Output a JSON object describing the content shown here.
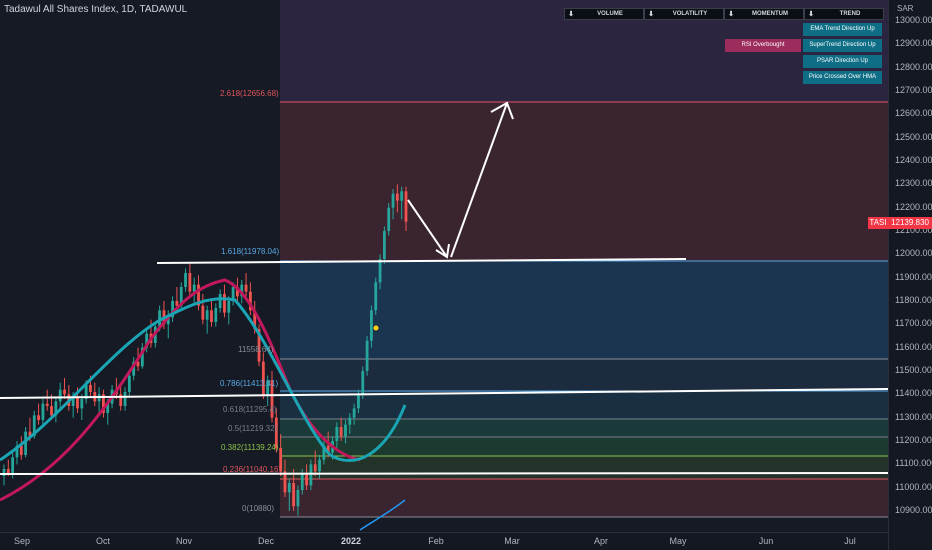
{
  "header": {
    "title": "Tadawul All Shares Index, 1D, TADAWUL"
  },
  "symbol": {
    "ticker": "TASI",
    "last_price": "12139.830",
    "currency": "SAR"
  },
  "indicator_panel": {
    "columns": [
      {
        "label": "VOLUME",
        "icon": "down-arrow-icon"
      },
      {
        "label": "VOLATILITY",
        "icon": "down-arrow-icon"
      },
      {
        "label": "MOMENTUM",
        "icon": "down-arrow-icon"
      },
      {
        "label": "TREND",
        "icon": "down-arrow-icon"
      }
    ],
    "momentum_signals": [
      "RSI Overbought"
    ],
    "trend_signals": [
      "EMA Trend Direction Up",
      "SuperTrend Direction Up",
      "PSAR Direction Up",
      "Price Crossed Over HMA"
    ],
    "colors": {
      "trend": "#0e6e86",
      "momentum": "#9c2c5c"
    }
  },
  "fib_levels": [
    {
      "text": "2.618(12656.68)",
      "color": "#e0565f"
    },
    {
      "text": "1.618(11978.04)",
      "color": "#5aa9e6"
    },
    {
      "text": "11558.64)",
      "color": "#8a8f9a"
    },
    {
      "text": "0.786(11413.41)",
      "color": "#5aa9e6"
    },
    {
      "text": "0.618(11295.4)",
      "color": "#7a7f8a"
    },
    {
      "text": "0.5(11219.32)",
      "color": "#7a7f8a"
    },
    {
      "text": "0.382(11139.24)",
      "color": "#8bc34a"
    },
    {
      "text": "0.236(11040.16)",
      "color": "#e0565f"
    },
    {
      "text": "0(10880)",
      "color": "#8a8f9a"
    }
  ],
  "price_axis": {
    "labels": [
      "13000.000",
      "12900.000",
      "12800.000",
      "12700.000",
      "12600.000",
      "12500.000",
      "12400.000",
      "12300.000",
      "12200.000",
      "12100.000",
      "12000.000",
      "11900.000",
      "11800.000",
      "11700.000",
      "11600.000",
      "11500.000",
      "11400.000",
      "11300.000",
      "11200.000",
      "11100.000",
      "11000.000",
      "10900.000"
    ],
    "values": [
      13000,
      12900,
      12800,
      12700,
      12600,
      12500,
      12400,
      12300,
      12200,
      12100,
      12000,
      11900,
      11800,
      11700,
      11600,
      11500,
      11400,
      11300,
      11200,
      11100,
      11000,
      10900
    ]
  },
  "time_axis": {
    "labels": [
      "Sep",
      "Oct",
      "Nov",
      "Dec",
      "2022",
      "Feb",
      "Mar",
      "Apr",
      "May",
      "Jun",
      "Jul"
    ]
  },
  "colors": {
    "up_candle": "#26a69a",
    "down_candle": "#ef5350",
    "ema": "#c2185b",
    "hma": "#1aa5b5",
    "drawing": "#ffffff"
  },
  "candles": [
    [
      11050,
      11100,
      11010,
      11080
    ],
    [
      11080,
      11120,
      11050,
      11060
    ],
    [
      11060,
      11150,
      11040,
      11130
    ],
    [
      11130,
      11200,
      11100,
      11180
    ],
    [
      11180,
      11220,
      11120,
      11140
    ],
    [
      11140,
      11260,
      11130,
      11240
    ],
    [
      11240,
      11300,
      11200,
      11220
    ],
    [
      11220,
      11330,
      11210,
      11310
    ],
    [
      11310,
      11360,
      11270,
      11290
    ],
    [
      11290,
      11380,
      11260,
      11360
    ],
    [
      11360,
      11420,
      11330,
      11350
    ],
    [
      11350,
      11400,
      11290,
      11310
    ],
    [
      11310,
      11390,
      11280,
      11370
    ],
    [
      11370,
      11450,
      11340,
      11420
    ],
    [
      11420,
      11470,
      11380,
      11400
    ],
    [
      11400,
      11440,
      11330,
      11350
    ],
    [
      11350,
      11410,
      11300,
      11390
    ],
    [
      11390,
      11430,
      11320,
      11340
    ],
    [
      11340,
      11400,
      11290,
      11380
    ],
    [
      11380,
      11460,
      11360,
      11440
    ],
    [
      11440,
      11480,
      11390,
      11410
    ],
    [
      11410,
      11450,
      11350,
      11370
    ],
    [
      11370,
      11430,
      11320,
      11400
    ],
    [
      11400,
      11420,
      11300,
      11320
    ],
    [
      11320,
      11380,
      11270,
      11360
    ],
    [
      11360,
      11440,
      11340,
      11420
    ],
    [
      11420,
      11470,
      11380,
      11400
    ],
    [
      11400,
      11440,
      11330,
      11350
    ],
    [
      11350,
      11430,
      11330,
      11410
    ],
    [
      11410,
      11500,
      11390,
      11480
    ],
    [
      11480,
      11560,
      11460,
      11540
    ],
    [
      11540,
      11600,
      11500,
      11520
    ],
    [
      11520,
      11620,
      11510,
      11600
    ],
    [
      11600,
      11680,
      11580,
      11660
    ],
    [
      11660,
      11720,
      11600,
      11620
    ],
    [
      11620,
      11700,
      11600,
      11690
    ],
    [
      11690,
      11780,
      11670,
      11760
    ],
    [
      11760,
      11800,
      11680,
      11700
    ],
    [
      11700,
      11760,
      11640,
      11730
    ],
    [
      11730,
      11820,
      11710,
      11800
    ],
    [
      11800,
      11860,
      11760,
      11780
    ],
    [
      11780,
      11880,
      11770,
      11860
    ],
    [
      11860,
      11940,
      11840,
      11920
    ],
    [
      11920,
      11960,
      11820,
      11840
    ],
    [
      11840,
      11900,
      11790,
      11870
    ],
    [
      11870,
      11910,
      11760,
      11780
    ],
    [
      11780,
      11830,
      11700,
      11720
    ],
    [
      11720,
      11780,
      11660,
      11760
    ],
    [
      11760,
      11800,
      11690,
      11710
    ],
    [
      11710,
      11790,
      11690,
      11770
    ],
    [
      11770,
      11850,
      11750,
      11830
    ],
    [
      11830,
      11870,
      11730,
      11750
    ],
    [
      11750,
      11820,
      11700,
      11800
    ],
    [
      11800,
      11880,
      11780,
      11860
    ],
    [
      11860,
      11900,
      11800,
      11820
    ],
    [
      11820,
      11890,
      11790,
      11870
    ],
    [
      11870,
      11920,
      11820,
      11840
    ],
    [
      11840,
      11880,
      11740,
      11760
    ],
    [
      11760,
      11800,
      11660,
      11680
    ],
    [
      11680,
      11700,
      11520,
      11540
    ],
    [
      11540,
      11580,
      11380,
      11400
    ],
    [
      11400,
      11480,
      11350,
      11460
    ],
    [
      11460,
      11500,
      11280,
      11300
    ],
    [
      11300,
      11340,
      11150,
      11170
    ],
    [
      11170,
      11230,
      11050,
      11070
    ],
    [
      11070,
      11120,
      10960,
      10980
    ],
    [
      10980,
      11040,
      10900,
      11020
    ],
    [
      11020,
      11080,
      10900,
      10920
    ],
    [
      10920,
      11010,
      10880,
      10990
    ],
    [
      10990,
      11080,
      10970,
      11060
    ],
    [
      11060,
      11100,
      10990,
      11010
    ],
    [
      11010,
      11120,
      10990,
      11100
    ],
    [
      11100,
      11160,
      11050,
      11070
    ],
    [
      11070,
      11140,
      11040,
      11120
    ],
    [
      11120,
      11200,
      11100,
      11180
    ],
    [
      11180,
      11240,
      11130,
      11150
    ],
    [
      11150,
      11220,
      11120,
      11200
    ],
    [
      11200,
      11280,
      11170,
      11260
    ],
    [
      11260,
      11300,
      11200,
      11220
    ],
    [
      11220,
      11290,
      11190,
      11270
    ],
    [
      11270,
      11320,
      11230,
      11300
    ],
    [
      11300,
      11360,
      11270,
      11340
    ],
    [
      11340,
      11420,
      11320,
      11400
    ],
    [
      11400,
      11520,
      11380,
      11500
    ],
    [
      11500,
      11650,
      11480,
      11630
    ],
    [
      11630,
      11780,
      11600,
      11760
    ],
    [
      11760,
      11900,
      11740,
      11880
    ],
    [
      11880,
      12000,
      11850,
      11980
    ],
    [
      11980,
      12120,
      11960,
      12100
    ],
    [
      12100,
      12220,
      12080,
      12200
    ],
    [
      12200,
      12280,
      12150,
      12260
    ],
    [
      12260,
      12300,
      12180,
      12230
    ],
    [
      12230,
      12290,
      12150,
      12270
    ],
    [
      12270,
      12290,
      12100,
      12140
    ]
  ]
}
